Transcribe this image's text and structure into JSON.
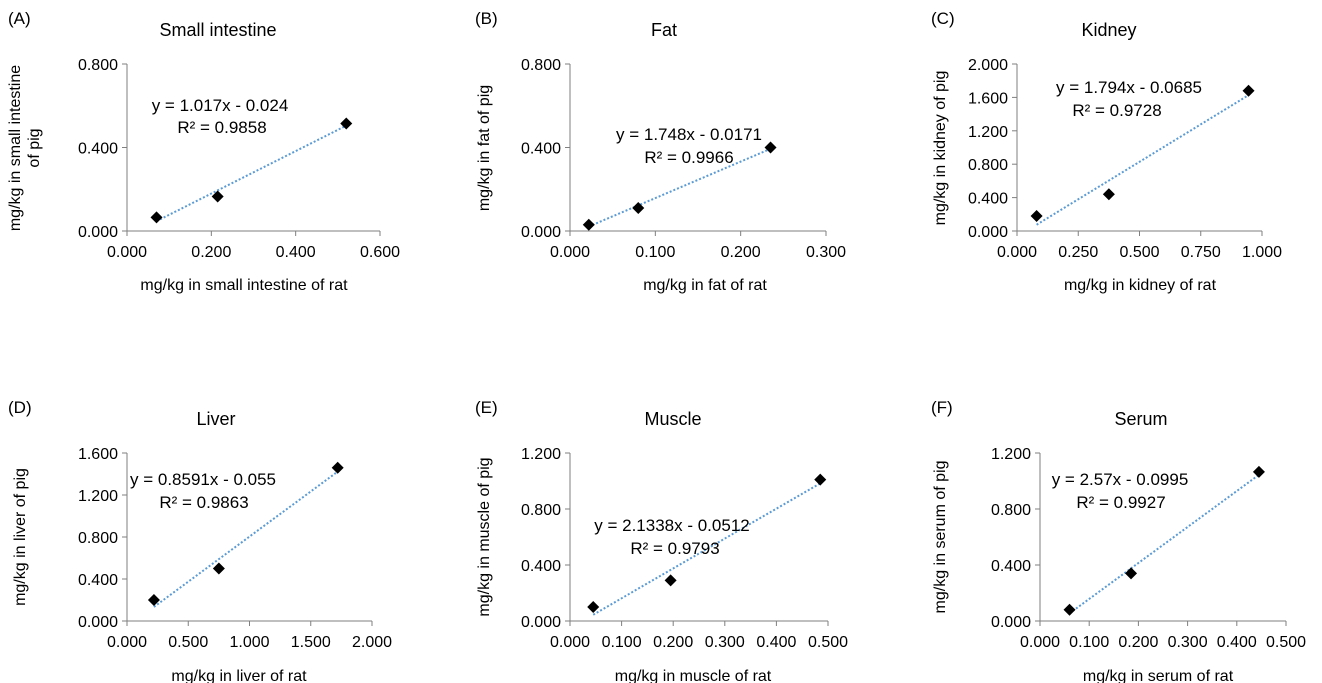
{
  "chart_data": [
    {
      "type": "scatter",
      "panel_label": "(A)",
      "title": "Small intestine",
      "xlabel": "mg/kg in small intestine of rat",
      "ylabel": [
        "mg/kg in small intestine",
        "of pig"
      ],
      "xlim": [
        0,
        0.6
      ],
      "ylim": [
        0,
        0.8
      ],
      "xticks": [
        "0.000",
        "0.200",
        "0.400",
        "0.600"
      ],
      "yticks": [
        "0.000",
        "0.400",
        "0.800"
      ],
      "points": [
        [
          0.07,
          0.065
        ],
        [
          0.215,
          0.165
        ],
        [
          0.52,
          0.515
        ]
      ],
      "trendline": {
        "slope": 1.017,
        "intercept": -0.024
      },
      "equation": "y = 1.017x - 0.024",
      "r2": "R² = 0.9858",
      "grid": false
    },
    {
      "type": "scatter",
      "panel_label": "(B)",
      "title": "Fat",
      "xlabel": "mg/kg in fat of rat",
      "ylabel": [
        "mg/kg in fat of pig"
      ],
      "xlim": [
        0,
        0.3
      ],
      "ylim": [
        0,
        0.8
      ],
      "xticks": [
        "0.000",
        "0.100",
        "0.200",
        "0.300"
      ],
      "yticks": [
        "0.000",
        "0.400",
        "0.800"
      ],
      "points": [
        [
          0.022,
          0.03
        ],
        [
          0.08,
          0.11
        ],
        [
          0.235,
          0.4
        ]
      ],
      "trendline": {
        "slope": 1.748,
        "intercept": -0.0171
      },
      "equation": "y = 1.748x - 0.0171",
      "r2": "R² = 0.9966",
      "grid": false
    },
    {
      "type": "scatter",
      "panel_label": "(C)",
      "title": "Kidney",
      "xlabel": "mg/kg in kidney of rat",
      "ylabel": [
        "mg/kg in kidney of pig"
      ],
      "xlim": [
        0,
        1.0
      ],
      "ylim": [
        0,
        2.0
      ],
      "xticks": [
        "0.000",
        "0.250",
        "0.500",
        "0.750",
        "1.000"
      ],
      "yticks": [
        "0.000",
        "0.400",
        "0.800",
        "1.200",
        "1.600",
        "2.000"
      ],
      "points": [
        [
          0.08,
          0.18
        ],
        [
          0.375,
          0.44
        ],
        [
          0.945,
          1.68
        ]
      ],
      "trendline": {
        "slope": 1.794,
        "intercept": -0.0685
      },
      "equation": "y = 1.794x - 0.0685",
      "r2": "R² = 0.9728",
      "grid": false
    },
    {
      "type": "scatter",
      "panel_label": "(D)",
      "title": "Liver",
      "xlabel": "mg/kg in liver of rat",
      "ylabel": [
        "mg/kg in liver of pig"
      ],
      "xlim": [
        0,
        2.0
      ],
      "ylim": [
        0,
        1.6
      ],
      "xticks": [
        "0.000",
        "0.500",
        "1.000",
        "1.500",
        "2.000"
      ],
      "yticks": [
        "0.000",
        "0.400",
        "0.800",
        "1.200",
        "1.600"
      ],
      "points": [
        [
          0.22,
          0.2
        ],
        [
          0.75,
          0.5
        ],
        [
          1.72,
          1.46
        ]
      ],
      "trendline": {
        "slope": 0.8591,
        "intercept": -0.055
      },
      "equation": "y = 0.8591x - 0.055",
      "r2": "R² = 0.9863",
      "grid": false
    },
    {
      "type": "scatter",
      "panel_label": "(E)",
      "title": "Muscle",
      "xlabel": "mg/kg in muscle of rat",
      "ylabel": [
        "mg/kg in muscle of pig"
      ],
      "xlim": [
        0,
        0.5
      ],
      "ylim": [
        0,
        1.2
      ],
      "xticks": [
        "0.000",
        "0.100",
        "0.200",
        "0.300",
        "0.400",
        "0.500"
      ],
      "yticks": [
        "0.000",
        "0.400",
        "0.800",
        "1.200"
      ],
      "points": [
        [
          0.045,
          0.1
        ],
        [
          0.195,
          0.29
        ],
        [
          0.485,
          1.01
        ]
      ],
      "trendline": {
        "slope": 2.1338,
        "intercept": -0.0512
      },
      "equation": "y = 2.1338x - 0.0512",
      "r2": "R² = 0.9793",
      "grid": false
    },
    {
      "type": "scatter",
      "panel_label": "(F)",
      "title": "Serum",
      "xlabel": "mg/kg in serum of rat",
      "ylabel": [
        "mg/kg in serum of pig"
      ],
      "xlim": [
        0,
        0.5
      ],
      "ylim": [
        0,
        1.2
      ],
      "xticks": [
        "0.000",
        "0.100",
        "0.200",
        "0.300",
        "0.400",
        "0.500"
      ],
      "yticks": [
        "0.000",
        "0.400",
        "0.800",
        "1.200"
      ],
      "points": [
        [
          0.06,
          0.08
        ],
        [
          0.185,
          0.34
        ],
        [
          0.445,
          1.065
        ]
      ],
      "trendline": {
        "slope": 2.57,
        "intercept": -0.0995
      },
      "equation": "y = 2.57x - 0.0995",
      "r2": "R² = 0.9927",
      "grid": false
    }
  ],
  "colors": {
    "marker": "#000000",
    "trendline": "#5b9bd5",
    "axis": "#7f7f7f",
    "text": "#000000"
  }
}
